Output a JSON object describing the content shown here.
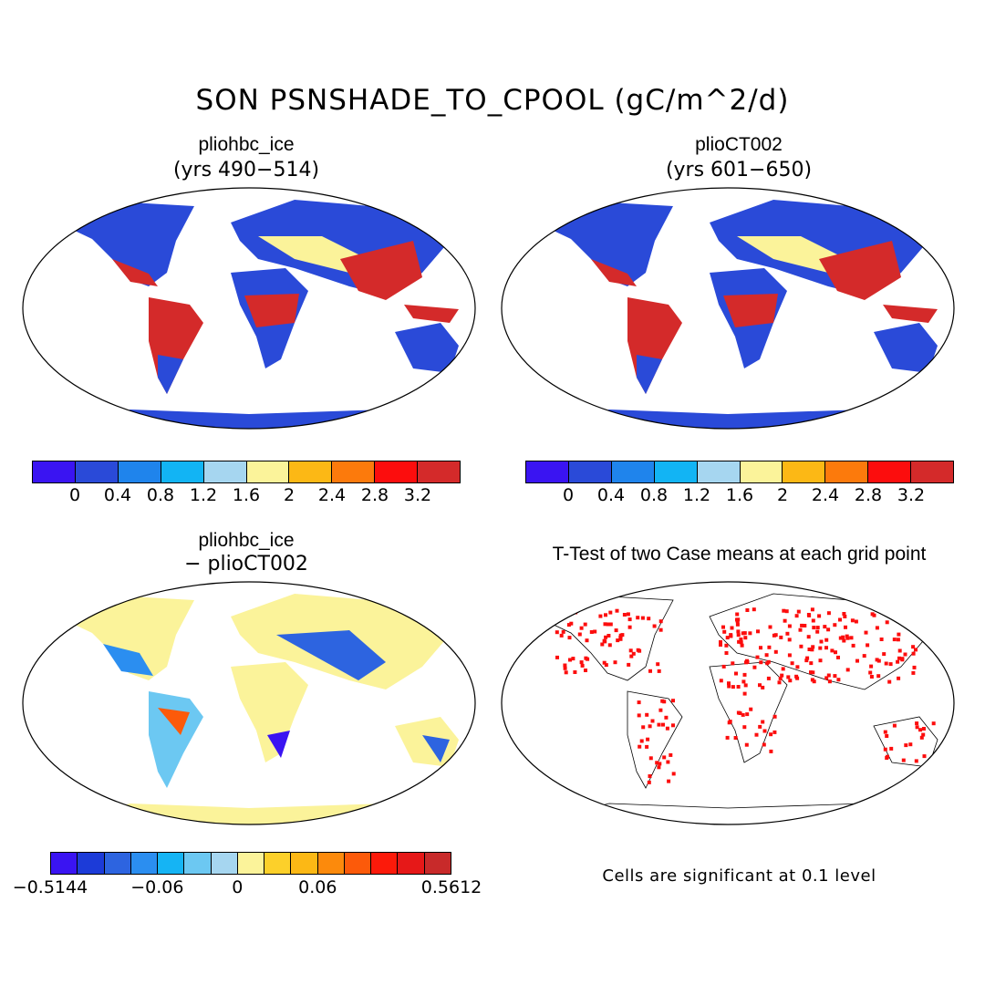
{
  "title": "SON PSNSHADE_TO_CPOOL (gC/m^2/d)",
  "panels": {
    "top_left": {
      "title": "pliohbc_ice",
      "subtitle": "(yrs 490−514)"
    },
    "top_right": {
      "title": "plioCT002",
      "subtitle": "(yrs 601−650)"
    },
    "bottom_left": {
      "title": "pliohbc_ice",
      "subtitle": "− plioCT002"
    },
    "bottom_right": {
      "title": "T-Test of two Case means at each grid point",
      "note": "Cells are significant at 0.1 level"
    }
  },
  "colorbar_abs": {
    "colors": [
      "#3a14f2",
      "#2a4ad8",
      "#1f84ec",
      "#12b4f4",
      "#a6d6f0",
      "#fbf39a",
      "#fcb815",
      "#fc7a0c",
      "#fc0d0d",
      "#d42a2a"
    ],
    "ticks": [
      "0",
      "0.4",
      "0.8",
      "1.2",
      "1.6",
      "2",
      "2.4",
      "2.8",
      "3.2"
    ]
  },
  "colorbar_diff": {
    "colors": [
      "#3a14f2",
      "#1c3bd8",
      "#2d64e0",
      "#2b8ef0",
      "#15b4f4",
      "#6cc8f2",
      "#a6d6f0",
      "#fbf39a",
      "#fcd02a",
      "#fcb815",
      "#fc8a0c",
      "#fc5a0a",
      "#fc1a0a",
      "#e61818",
      "#c82a2a"
    ],
    "ticks": [
      "−0.5144",
      "−0.06",
      "0",
      "0.06",
      "0.5612"
    ]
  },
  "map_colors": {
    "ocean": "#ffffff",
    "land_low": "#2a4ad8",
    "land_mid": "#12b4f4",
    "land_yellow": "#fbf39a",
    "land_high": "#fc7a0c",
    "land_max": "#d42a2a",
    "diff_base": "#fbf39a",
    "signif": "#fc0d0d"
  }
}
